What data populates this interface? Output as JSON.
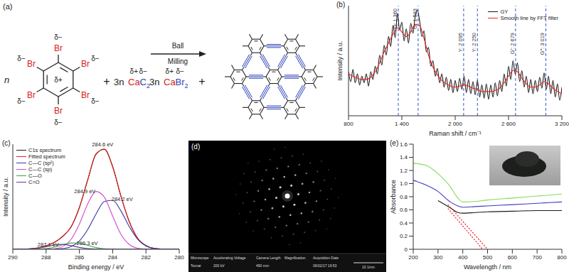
{
  "scheme": {
    "label": "(a)",
    "reactant_1": {
      "coefficient": "n",
      "substituent": "Br",
      "substituent_charge": "δ−",
      "ring_charge": "δ+"
    },
    "plus": "+",
    "reactant_2": {
      "coefficient": "3n",
      "cation": "Ca",
      "anion": "C",
      "subscript": "2",
      "cation_charge": "δ+",
      "anion_charge": "δ−"
    },
    "arrow_label": [
      "Ball",
      "Milling"
    ],
    "product_1": {
      "coefficient": "3n",
      "cation": "Ca",
      "anion": "Br",
      "subscript": "2",
      "cation_charge": "δ+",
      "anion_charge": "δ−"
    }
  },
  "chart_data": [
    {
      "panel_label": "(b)",
      "type": "line",
      "x_label": "Raman shift / cm⁻¹",
      "y_label": "Intensity / a.u.",
      "xlim": [
        800,
        3200
      ],
      "xticks": [
        800,
        {
          "value": 1400,
          "label": "1 400"
        },
        {
          "value": 2000,
          "label": "2 000"
        },
        {
          "value": 2600,
          "label": "2 600"
        },
        {
          "value": 3200,
          "label": "3 200"
        }
      ],
      "ylim": [
        0,
        100
      ],
      "tick_labels": "x",
      "legend": "upper right",
      "series": [
        {
          "name": "GY",
          "color": "#1a1a1a",
          "x": [
            800,
            825,
            850,
            875,
            900,
            925,
            950,
            975,
            1000,
            1025,
            1050,
            1075,
            1100,
            1125,
            1150,
            1175,
            1200,
            1225,
            1250,
            1275,
            1300,
            1325,
            1350,
            1375,
            1400,
            1425,
            1450,
            1475,
            1500,
            1525,
            1550,
            1575,
            1600,
            1625,
            1650,
            1675,
            1700,
            1725,
            1750,
            1775,
            1800,
            1825,
            1850,
            1875,
            1900,
            1925,
            1950,
            1975,
            2000,
            2025,
            2050,
            2075,
            2100,
            2125,
            2150,
            2175,
            2200,
            2225,
            2250,
            2275,
            2300,
            2325,
            2350,
            2375,
            2400,
            2425,
            2450,
            2475,
            2500,
            2525,
            2550,
            2575,
            2600,
            2625,
            2650,
            2675,
            2700,
            2725,
            2750,
            2775,
            2800,
            2825,
            2850,
            2875,
            2900,
            2925,
            2950,
            2975,
            3000,
            3025,
            3050,
            3075,
            3100,
            3125,
            3150,
            3175,
            3200
          ],
          "values": [
            40,
            31,
            42,
            30,
            38,
            28,
            36,
            30,
            38,
            27,
            40,
            33,
            45,
            38,
            55,
            46,
            64,
            55,
            72,
            63,
            82,
            71,
            93,
            78,
            85,
            68,
            79,
            66,
            84,
            75,
            90,
            96,
            86,
            72,
            77,
            58,
            62,
            45,
            50,
            36,
            43,
            30,
            38,
            26,
            35,
            23,
            33,
            21,
            32,
            22,
            34,
            24,
            36,
            21,
            33,
            20,
            31,
            19,
            32,
            17,
            28,
            16,
            29,
            15,
            28,
            17,
            30,
            18,
            32,
            22,
            38,
            27,
            45,
            33,
            50,
            38,
            48,
            31,
            41,
            26,
            36,
            21,
            33,
            20,
            32,
            22,
            35,
            25,
            39,
            24,
            36,
            20,
            32,
            17,
            29,
            14,
            26
          ]
        },
        {
          "name": "Smooth line by FFT filter",
          "color": "#e8231e",
          "x": [
            800,
            850,
            900,
            950,
            1000,
            1050,
            1100,
            1150,
            1200,
            1250,
            1300,
            1350,
            1400,
            1450,
            1500,
            1550,
            1600,
            1650,
            1700,
            1750,
            1800,
            1850,
            1900,
            1950,
            2000,
            2050,
            2100,
            2150,
            2200,
            2250,
            2300,
            2350,
            2400,
            2450,
            2500,
            2550,
            2600,
            2650,
            2700,
            2750,
            2800,
            2850,
            2900,
            2950,
            3000,
            3050,
            3100,
            3150,
            3200
          ],
          "values": [
            38,
            36,
            34,
            33,
            33,
            35,
            40,
            48,
            58,
            66,
            74,
            80,
            76,
            72,
            76,
            83,
            82,
            70,
            55,
            44,
            37,
            32,
            29,
            27,
            26,
            27,
            28,
            27,
            25,
            24,
            22,
            22,
            22,
            23,
            25,
            30,
            36,
            41,
            40,
            34,
            29,
            26,
            26,
            28,
            31,
            29,
            25,
            22,
            20
          ]
        }
      ],
      "peaks": [
        {
          "value": 1360,
          "label": "D: 1 360"
        },
        {
          "value": 1583,
          "label": "G: 1 583"
        },
        {
          "value": 2095,
          "label": "Y: 2 095"
        },
        {
          "value": 2250,
          "label": "Y: 2 250"
        },
        {
          "value": 2679,
          "label": "G′: 2 679"
        },
        {
          "value": 3019,
          "label": "G″: 3 019"
        }
      ]
    },
    {
      "panel_label": "(c)",
      "type": "line",
      "x_label": "Binding energy / eV",
      "y_label": "Intensity / a.u.",
      "xlim": [
        290,
        280
      ],
      "xticks": [
        290,
        288,
        286,
        284,
        282,
        280
      ],
      "ylim": [
        0,
        130
      ],
      "tick_labels": "x",
      "legend": "upper left",
      "x": [
        290,
        289.5,
        289,
        288.5,
        288,
        287.5,
        287,
        286.5,
        286,
        285.5,
        285,
        284.5,
        284,
        283.5,
        283,
        282.5,
        282,
        281.5,
        281,
        280.5,
        280
      ],
      "series": [
        {
          "name": "C1s spectrum",
          "color": "#1a1a1a",
          "values": [
            0,
            0.3,
            0.6,
            1.7,
            4.4,
            8.5,
            16.2,
            27.5,
            51.8,
            85.6,
            117.8,
            123.6,
            102.3,
            65.4,
            34.2,
            13.5,
            4.6,
            1.0,
            0.3,
            0,
            0
          ]
        },
        {
          "name": "Fitted spectrum",
          "color": "#e8231e",
          "values": [
            0,
            0.1,
            0.4,
            1.5,
            4.1,
            8.7,
            15.7,
            27.9,
            51.3,
            86.1,
            117.3,
            124.1,
            101.8,
            65.8,
            33.8,
            13.8,
            4.4,
            1.1,
            0.2,
            0,
            0
          ]
        },
        {
          "name": "C—C (sp²)",
          "color": "#3838a8",
          "values": [
            0,
            0,
            0,
            0,
            0,
            0.1,
            0.8,
            3.3,
            10.3,
            24.3,
            43.5,
            59,
            60.6,
            47.3,
            27.9,
            12.5,
            4.2,
            1.1,
            0.2,
            0,
            0
          ]
        },
        {
          "name": "C—C (sp)",
          "color": "#d04ad0",
          "values": [
            0,
            0,
            0,
            0,
            0.1,
            0.7,
            3.4,
            12.3,
            31.2,
            56.1,
            71.5,
            64.5,
            41.1,
            18.5,
            5.9,
            1.3,
            0.2,
            0,
            0,
            0,
            0
          ]
        },
        {
          "name": "C—O",
          "color": "#3aa83a",
          "values": [
            0,
            0,
            0,
            0.2,
            0.8,
            2.6,
            5.5,
            7.8,
            7.5,
            4.9,
            2.1,
            0.6,
            0.1,
            0,
            0,
            0,
            0,
            0,
            0,
            0,
            0
          ]
        },
        {
          "name": "C=O",
          "color": "#5a3a9a",
          "values": [
            0,
            0.1,
            0.4,
            1.3,
            3.2,
            5.3,
            6.0,
            4.5,
            2.3,
            0.8,
            0.2,
            0,
            0,
            0,
            0,
            0,
            0,
            0,
            0,
            0,
            0
          ]
        }
      ],
      "annotations": [
        {
          "x": 284.6,
          "y": 125,
          "label": "284.6 eV"
        },
        {
          "x": 284.9,
          "y": 72,
          "label": "284.9 eV"
        },
        {
          "x": 284.2,
          "y": 62,
          "label": "284.2 eV"
        },
        {
          "x": 286.3,
          "y": 8,
          "label": "286.3 eV"
        },
        {
          "x": 287.1,
          "y": 6,
          "label": "287.1 eV"
        }
      ]
    },
    {
      "panel_label": "(e)",
      "type": "line",
      "x_label": "Wavelength / nm",
      "y_label": "Absorbance",
      "xlim": [
        200,
        800
      ],
      "xticks": [
        200,
        300,
        400,
        500,
        600,
        700,
        800
      ],
      "ylim": [
        0,
        1.6
      ],
      "yticks": [
        0,
        0.2,
        0.4,
        0.6,
        0.8,
        {
          "value": 1,
          "label": "1.0"
        },
        1.2,
        1.4,
        1.6
      ],
      "series": [
        {
          "color": "#7fdc5a",
          "x": [
            200,
            250,
            300,
            350,
            380,
            400,
            450,
            500,
            600,
            700,
            800
          ],
          "values": [
            1.31,
            1.28,
            1.15,
            0.95,
            0.78,
            0.72,
            0.73,
            0.75,
            0.78,
            0.81,
            0.84
          ]
        },
        {
          "color": "#3b3bc4",
          "x": [
            200,
            250,
            300,
            350,
            380,
            400,
            450,
            500,
            600,
            700,
            800
          ],
          "values": [
            1.05,
            0.98,
            0.88,
            0.72,
            0.66,
            0.64,
            0.65,
            0.66,
            0.68,
            0.7,
            0.72
          ]
        },
        {
          "color": "#1a1a1a",
          "x": [
            200,
            250,
            300,
            350,
            380,
            400,
            450,
            500,
            600,
            700,
            800
          ],
          "values": [
            null,
            null,
            0.74,
            0.63,
            0.56,
            0.55,
            0.56,
            0.57,
            0.58,
            0.59,
            0.59
          ]
        },
        {
          "color": "#e03030",
          "line_style": "dotted",
          "x": [
            340,
            480
          ],
          "values": [
            0.62,
            0
          ]
        },
        {
          "color": "#e03030",
          "line_style": "dotted",
          "x": [
            340,
            500
          ],
          "values": [
            0.68,
            0
          ]
        }
      ]
    }
  ],
  "image_d": {
    "panel_label": "(d)",
    "info_bar": {
      "columns": [
        {
          "header": "Microscope",
          "value": "Tecnai"
        },
        {
          "header": "Accelerating Voltage",
          "value": "200 kV"
        },
        {
          "header": "Camera Length",
          "value": "490 mm"
        },
        {
          "header": "Magnification"
        },
        {
          "header": "Acquisition Date",
          "value": "06/02/17 16:53"
        }
      ],
      "scale_bar": "10 1/nm"
    }
  }
}
